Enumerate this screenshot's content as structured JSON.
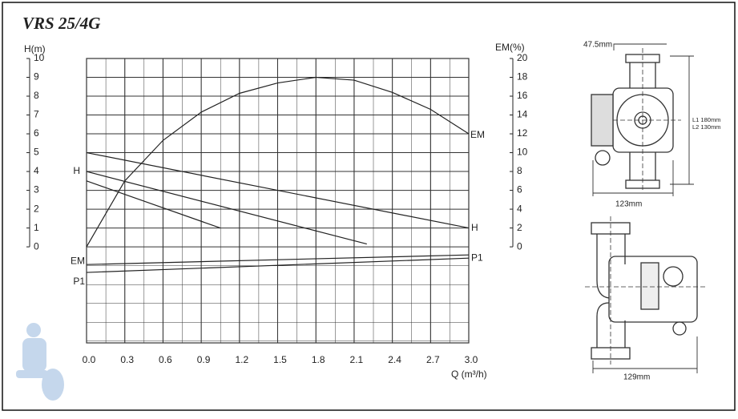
{
  "chart_data": {
    "type": "line",
    "title": "VRS 25/4G",
    "ylabel": "H(m)",
    "y2label": "EM(%)",
    "xlabel": "Q (m³/h)",
    "xlim": [
      0,
      3
    ],
    "xticks": [
      {
        "value": 0,
        "label": "0.0"
      },
      0.3,
      0.6,
      0.9,
      1.2,
      1.5,
      1.8,
      2.1,
      2.4,
      2.7,
      {
        "value": 3,
        "label": "3.0"
      }
    ],
    "ylim": [
      -5.1,
      10
    ],
    "yticks": [
      0,
      1,
      2,
      3,
      4,
      5,
      6,
      7,
      8,
      9,
      10
    ],
    "y2lim": [
      -10.2,
      20
    ],
    "y2ticks": [
      0,
      2,
      4,
      6,
      8,
      10,
      12,
      14,
      16,
      18,
      20
    ],
    "grid": true,
    "color": "#222222",
    "series": [
      {
        "name": "H",
        "x": [
          0,
          3
        ],
        "values": [
          5,
          1
        ]
      },
      {
        "x": [
          0,
          2.2
        ],
        "values": [
          4,
          0.15
        ]
      },
      {
        "x": [
          0,
          1.05
        ],
        "values": [
          3.5,
          1
        ]
      },
      {
        "name": "EM",
        "axis": "y2",
        "x": [
          0,
          0.3,
          0.6,
          0.9,
          1.2,
          1.5,
          1.8,
          2.1,
          2.4,
          2.7,
          3
        ],
        "values": [
          0,
          7,
          11.3,
          14.3,
          16.3,
          17.4,
          18,
          17.7,
          16.4,
          14.6,
          12
        ]
      },
      {
        "name": "EM",
        "x": [
          0,
          3
        ],
        "values": [
          -0.94,
          -0.43
        ]
      },
      {
        "name": "P1",
        "x": [
          0,
          3
        ],
        "values": [
          -1.36,
          -0.6
        ]
      }
    ]
  },
  "drawings": {
    "top_view": [
      "47.5mm",
      "L1 180mm",
      "L2 130mm",
      "123mm"
    ],
    "side_view": [
      "129mm"
    ]
  }
}
